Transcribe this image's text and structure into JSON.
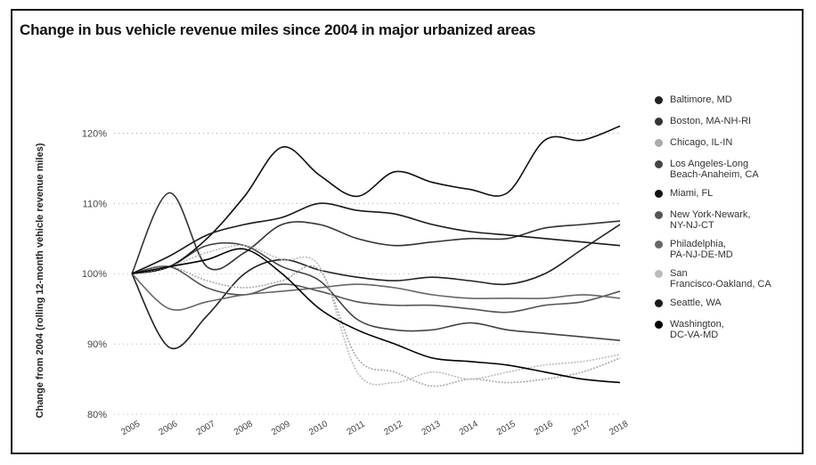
{
  "chart_data": {
    "type": "line",
    "title": "Change in bus vehicle revenue miles since 2004 in major urbanized areas",
    "ylabel": "Change from 2004 (rolling 12-month vehicle revenue miles)",
    "xlabel": "",
    "ylim": [
      80,
      125
    ],
    "yticks": [
      {
        "value": 80,
        "label": "80%"
      },
      {
        "value": 90,
        "label": "90%"
      },
      {
        "value": 100,
        "label": "100%"
      },
      {
        "value": 110,
        "label": "110%"
      },
      {
        "value": 120,
        "label": "120%"
      }
    ],
    "x": [
      2005,
      2006,
      2007,
      2008,
      2009,
      2010,
      2011,
      2012,
      2013,
      2014,
      2015,
      2016,
      2017,
      2018
    ],
    "xticklabels": [
      "2005",
      "2006",
      "2007",
      "2008",
      "2009",
      "2010",
      "2011",
      "2012",
      "2013",
      "2014",
      "2015",
      "2016",
      "2017",
      "2018"
    ],
    "legend_position": "right",
    "series": [
      {
        "name": "Baltimore, MD",
        "color": "#222222",
        "values": [
          100,
          89.5,
          94,
          100,
          102,
          100.5,
          99.5,
          99,
          99.5,
          99,
          98.5,
          100,
          103.5,
          107
        ]
      },
      {
        "name": "Boston, MA-NH-RI",
        "color": "#333333",
        "values": [
          100,
          111.5,
          101,
          103,
          107,
          107,
          105,
          104,
          104.5,
          105,
          105,
          106.5,
          107,
          107.5
        ]
      },
      {
        "name": "Chicago, IL-IN",
        "color": "#aaaaaa",
        "values": [
          100,
          101,
          99,
          98,
          99,
          100.5,
          88,
          86,
          84,
          85,
          84.5,
          85,
          86,
          88
        ]
      },
      {
        "name": "Los Angeles-Long Beach-Anaheim, CA",
        "color": "#444444",
        "values": [
          100,
          101,
          104,
          104,
          101,
          99,
          93.5,
          92,
          92,
          93,
          92,
          91.5,
          91,
          90.5
        ]
      },
      {
        "name": "Miami, FL",
        "color": "#111111",
        "values": [
          100,
          101,
          105,
          111,
          118,
          114,
          111,
          114.5,
          113,
          112,
          111.5,
          119,
          119,
          121
        ]
      },
      {
        "name": "New York-Newark, NY-NJ-CT",
        "color": "#555555",
        "values": [
          100,
          101,
          98,
          97,
          98.5,
          97.5,
          96,
          95.5,
          95.5,
          95,
          94.5,
          95.5,
          96,
          97.5
        ]
      },
      {
        "name": "Philadelphia, PA-NJ-DE-MD",
        "color": "#666666",
        "values": [
          100,
          95,
          96,
          97,
          97.5,
          98,
          98.5,
          98,
          97,
          96.5,
          96.5,
          96.5,
          97,
          96.5
        ]
      },
      {
        "name": "San Francisco-Oakland, CA",
        "color": "#bbbbbb",
        "values": [
          100,
          101,
          103,
          104,
          102,
          101,
          86,
          84.5,
          86,
          85,
          86,
          87,
          87.5,
          88.5
        ]
      },
      {
        "name": "Seattle, WA",
        "color": "#1a1a1a",
        "values": [
          100,
          102.5,
          105.5,
          107,
          108,
          110,
          109,
          108.5,
          107,
          106,
          105.5,
          105,
          104.5,
          104
        ]
      },
      {
        "name": "Washington, DC-VA-MD",
        "color": "#000000",
        "values": [
          100,
          101,
          102,
          103.5,
          100,
          95,
          92,
          90,
          88,
          87.5,
          87,
          86,
          85,
          84.5
        ]
      }
    ]
  },
  "legend": {
    "items": [
      {
        "label": "Baltimore, MD",
        "color": "#222222"
      },
      {
        "label": "Boston, MA-NH-RI",
        "color": "#333333"
      },
      {
        "label": "Chicago, IL-IN",
        "color": "#aaaaaa"
      },
      {
        "label": "Los Angeles-Long\nBeach-Anaheim, CA",
        "color": "#444444"
      },
      {
        "label": "Miami, FL",
        "color": "#111111"
      },
      {
        "label": "New York-Newark,\nNY-NJ-CT",
        "color": "#555555"
      },
      {
        "label": "Philadelphia,\nPA-NJ-DE-MD",
        "color": "#666666"
      },
      {
        "label": "San\nFrancisco-Oakland, CA",
        "color": "#bbbbbb"
      },
      {
        "label": "Seattle, WA",
        "color": "#1a1a1a"
      },
      {
        "label": "Washington,\nDC-VA-MD",
        "color": "#000000"
      }
    ]
  }
}
